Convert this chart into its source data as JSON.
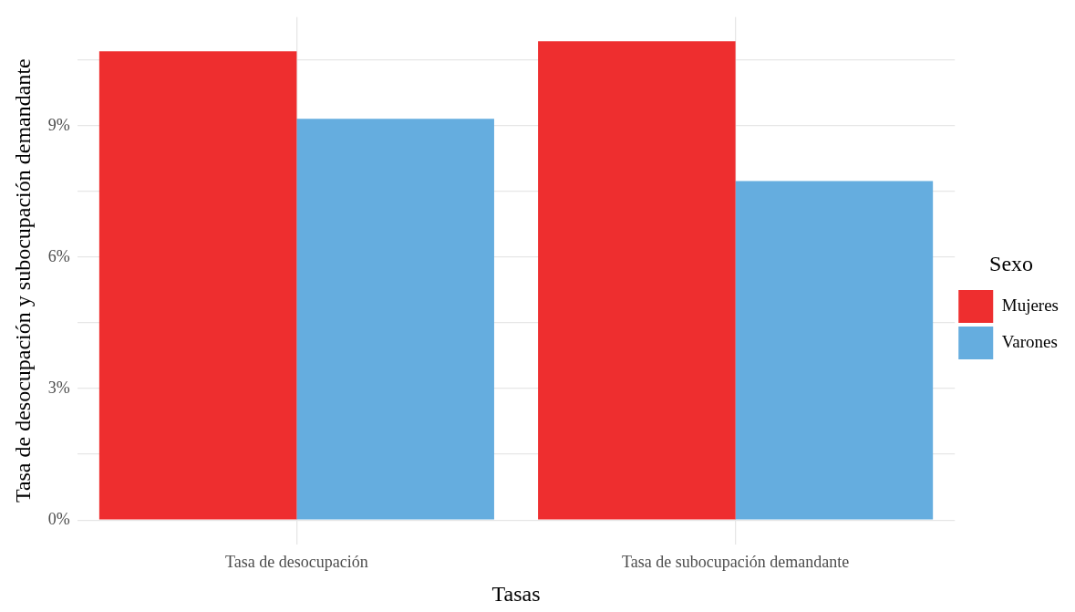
{
  "chart_data": {
    "type": "bar",
    "xlabel": "Tasas",
    "ylabel": "Tasa de desocupación y subocupación demandante",
    "legend_title": "Sexo",
    "categories": [
      "Tasa de desocupación",
      "Tasa de subocupación demandante"
    ],
    "series": [
      {
        "name": "Mujeres",
        "color": "#ee2e2f",
        "values": [
          10.7,
          10.93
        ]
      },
      {
        "name": "Varones",
        "color": "#65addf",
        "values": [
          9.16,
          7.74
        ]
      }
    ],
    "ylim": [
      -0.55,
      11.48
    ],
    "yticks": [
      {
        "value": 0,
        "label": "0%"
      },
      {
        "value": 1.5,
        "label": null
      },
      {
        "value": 3,
        "label": "3%"
      },
      {
        "value": 4.5,
        "label": null
      },
      {
        "value": 6,
        "label": "6%"
      },
      {
        "value": 7.5,
        "label": null
      },
      {
        "value": 9,
        "label": "9%"
      },
      {
        "value": 10.5,
        "label": null
      }
    ],
    "grid": true,
    "legend": "right"
  }
}
